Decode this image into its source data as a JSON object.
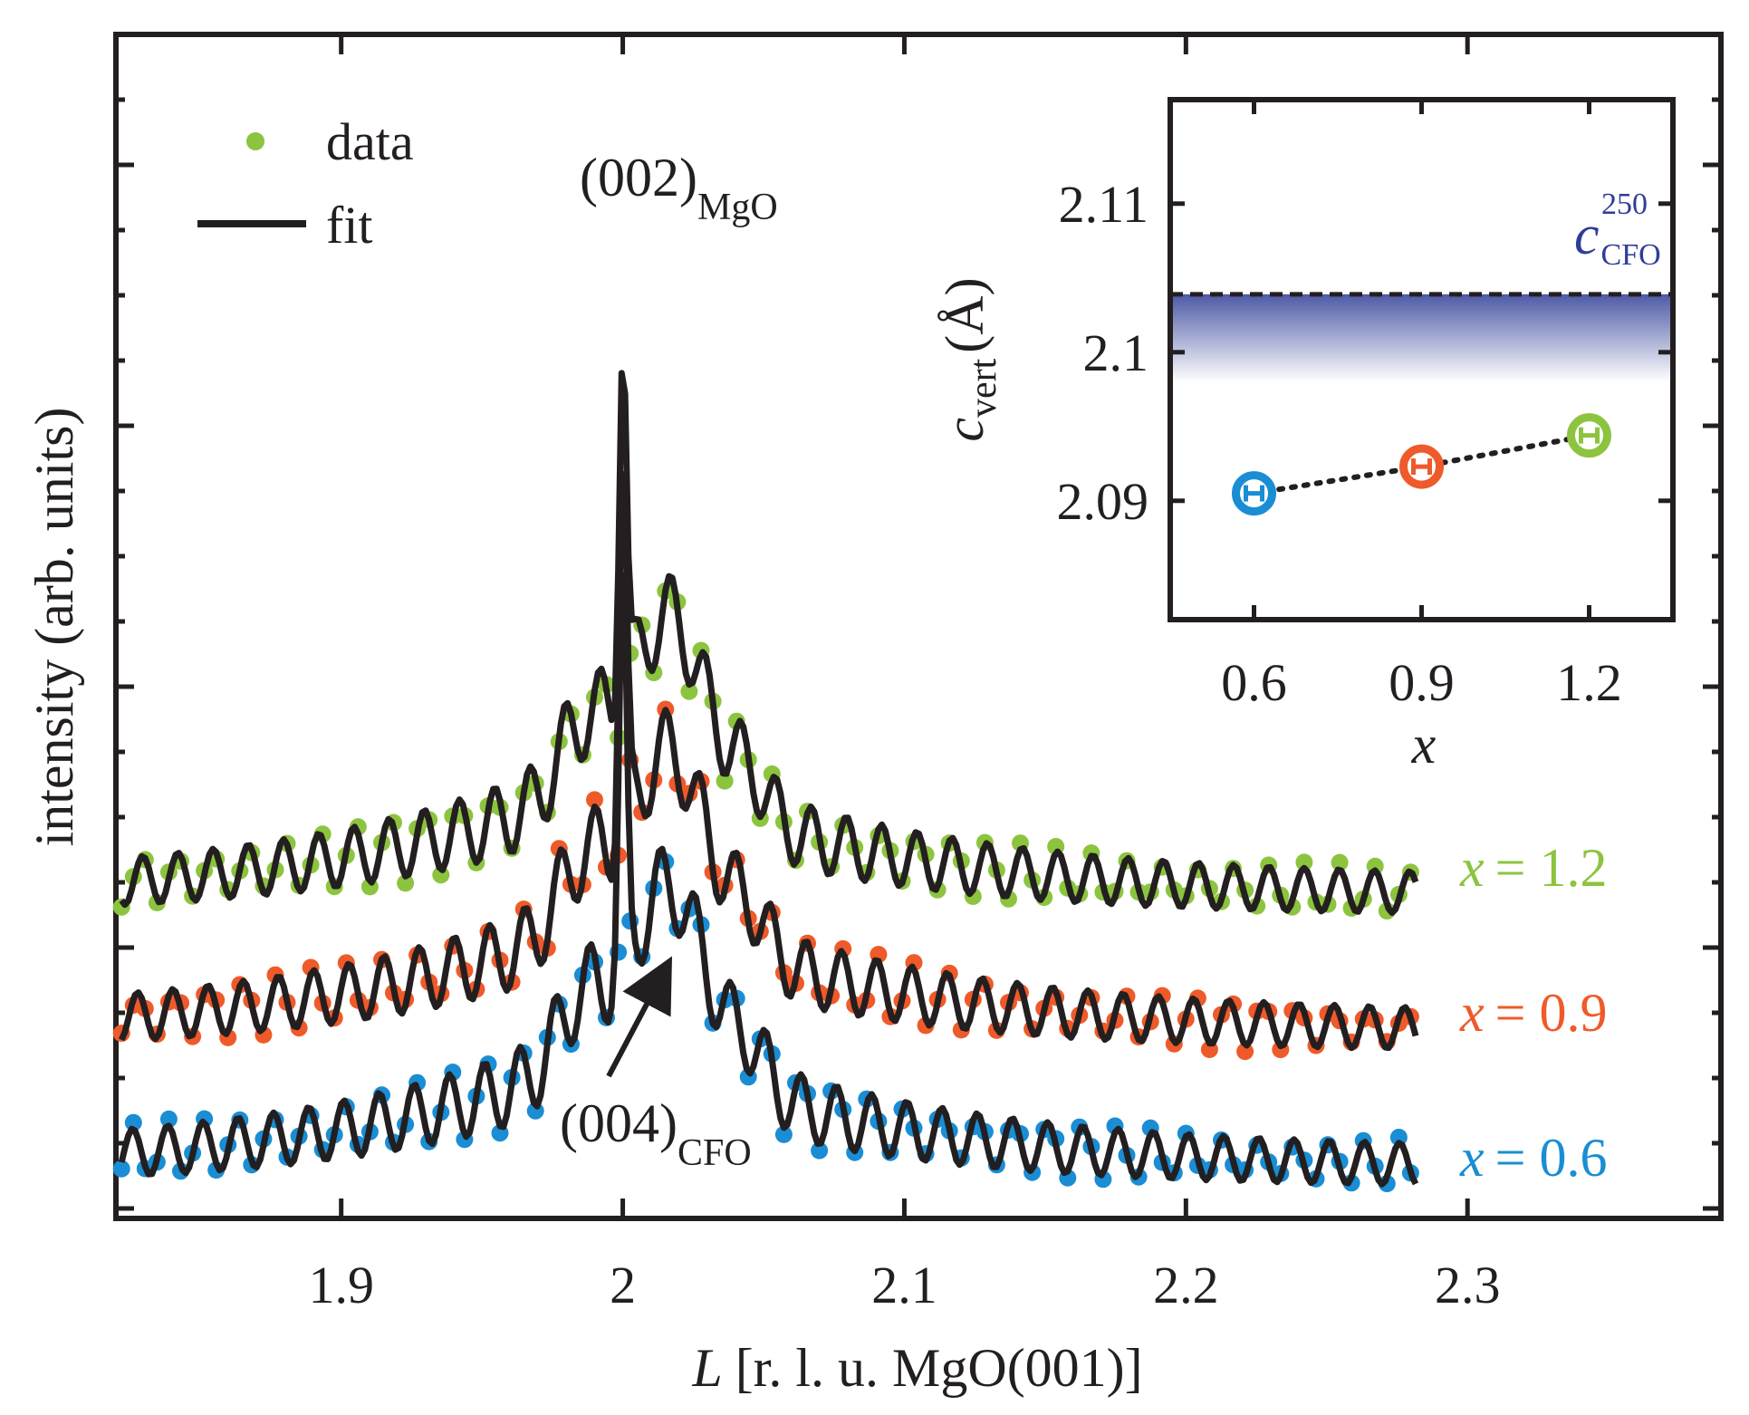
{
  "colors": {
    "axis": "#231f20",
    "fit": "#231f20",
    "x06": "#1a8dd4",
    "x09": "#ef5a2a",
    "x12": "#8cc43f",
    "bulk": "#2e3d96"
  },
  "chart_data": [
    {
      "type": "line",
      "xlabel_symbol": "L",
      "xlabel_rest": "[r. l. u. MgO(001)]",
      "ylabel": "intensity (arb. units)",
      "xlim": [
        1.82,
        2.39
      ],
      "xticks": [
        1.9,
        2.0,
        2.1,
        2.2,
        2.3
      ],
      "xtick_labels": [
        "1.9",
        "2",
        "2.1",
        "2.2",
        "2.3"
      ],
      "yscale": "log (arbitrary units, curves vertically offset)",
      "grid": false,
      "legend": {
        "position": "top-left",
        "entries": [
          {
            "label": "data",
            "marker": "dot"
          },
          {
            "label": "fit",
            "marker": "line"
          }
        ]
      },
      "annotations": [
        {
          "text": "(002)",
          "sub": "MgO",
          "x": 2.0
        },
        {
          "text": "(004)",
          "sub": "CFO",
          "x": 2.017,
          "arrow": true
        }
      ],
      "series_labels_symbol": "x",
      "series": [
        {
          "name": "x = 1.2",
          "value_text": "= 1.2",
          "color": "#8cc43f",
          "offset": 0.0,
          "vertical_order": 1
        },
        {
          "name": "x = 0.9",
          "value_text": "= 0.9",
          "color": "#ef5a2a",
          "offset": -1.3,
          "vertical_order": 2
        },
        {
          "name": "x = 0.6",
          "value_text": "= 0.6",
          "color": "#1a8dd4",
          "offset": -2.5,
          "vertical_order": 3
        }
      ],
      "peak_model": {
        "substrate_peak_L": 2.0,
        "film_peak_L": 2.017,
        "fringe_period_L": 0.0125,
        "x_start": 1.822,
        "x_end": 2.282
      }
    },
    {
      "type": "scatter",
      "xlabel": "x",
      "ylabel_symbol": "c",
      "ylabel_sub": "vert",
      "ylabel_unit": "(Å)",
      "xlim": [
        0.45,
        1.35
      ],
      "ylim": [
        2.082,
        2.117
      ],
      "xticks": [
        0.6,
        0.9,
        1.2
      ],
      "xtick_labels": [
        "0.6",
        "0.9",
        "1.2"
      ],
      "yticks": [
        2.09,
        2.1,
        2.11
      ],
      "ytick_labels": [
        "2.09",
        "2.1",
        "2.11"
      ],
      "points": [
        {
          "x": 0.6,
          "y": 2.0905,
          "color": "#1a8dd4"
        },
        {
          "x": 0.9,
          "y": 2.0923,
          "color": "#ef5a2a"
        },
        {
          "x": 1.2,
          "y": 2.0944,
          "color": "#8cc43f"
        }
      ],
      "connector": "dotted",
      "reference": {
        "label_symbol": "c",
        "label_sub": "CFO",
        "label_sup": "250",
        "y": 2.1039,
        "style": "dashed with shaded band below",
        "color": "#2e3d96"
      }
    }
  ]
}
